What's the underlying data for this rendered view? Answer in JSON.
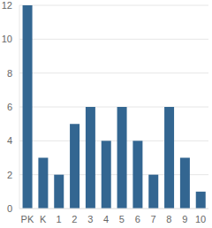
{
  "chart_data": {
    "type": "bar",
    "categories": [
      "PK",
      "K",
      "1",
      "2",
      "3",
      "4",
      "5",
      "6",
      "7",
      "8",
      "9",
      "10"
    ],
    "values": [
      12,
      3,
      2,
      5,
      6,
      4,
      6,
      4,
      2,
      6,
      3,
      1
    ],
    "color": "#336691",
    "ylim": [
      0,
      12
    ],
    "yticks": [
      0,
      2,
      4,
      6,
      8,
      10,
      12
    ],
    "grid": true
  }
}
